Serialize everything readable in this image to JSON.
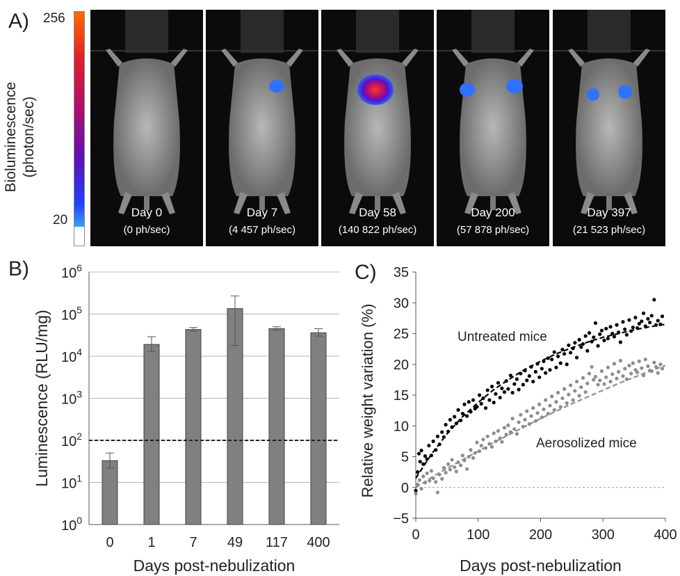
{
  "panel_a": {
    "letter": "A)",
    "scale_max": "256",
    "scale_min": "20",
    "scale_label_line1": "Bioluminescence",
    "scale_label_line2": "(photon/sec)",
    "images": [
      {
        "day": "Day 0",
        "signal": "(0 ph/sec)"
      },
      {
        "day": "Day 7",
        "signal": "(4 457 ph/sec)"
      },
      {
        "day": "Day 58",
        "signal": "(140 822 ph/sec)"
      },
      {
        "day": "Day 200",
        "signal": "(57 878 ph/sec)"
      },
      {
        "day": "Day 397",
        "signal": "(21 523 ph/sec)"
      }
    ]
  },
  "panel_b": {
    "letter": "B)"
  },
  "panel_c": {
    "letter": "C)",
    "annotation_untreated": "Untreated mice",
    "annotation_aerosolized": "Aerosolized mice"
  },
  "chart_data": [
    {
      "type": "bar",
      "xlabel": "Days post-nebulization",
      "ylabel": "Luminescence (RLU/mg)",
      "yscale": "log",
      "ylim": [
        1,
        1000000
      ],
      "yticks": [
        {
          "base": "10",
          "exp": "0"
        },
        {
          "base": "10",
          "exp": "1"
        },
        {
          "base": "10",
          "exp": "2"
        },
        {
          "base": "10",
          "exp": "3"
        },
        {
          "base": "10",
          "exp": "4"
        },
        {
          "base": "10",
          "exp": "5"
        },
        {
          "base": "10",
          "exp": "6"
        }
      ],
      "categories": [
        "0",
        "1",
        "7",
        "49",
        "117",
        "400"
      ],
      "values": [
        33,
        19000,
        43000,
        135000,
        45000,
        36000
      ],
      "error_low": [
        22,
        13000,
        39000,
        18000,
        41000,
        30000
      ],
      "error_high": [
        50,
        29000,
        48000,
        270000,
        50000,
        45000
      ],
      "threshold": 100,
      "grid": true,
      "colors": {
        "bar": "#808080",
        "bar_edge": "#404040",
        "threshold": "#222222"
      }
    },
    {
      "type": "scatter",
      "xlabel": "Days post-nebulization",
      "ylabel": "Relative weight variation (%)",
      "xlim": [
        0,
        400
      ],
      "ylim": [
        -5,
        35
      ],
      "xticks": [
        "0",
        "100",
        "200",
        "300",
        "400"
      ],
      "yticks": [
        "−5",
        "0",
        "5",
        "10",
        "15",
        "20",
        "25",
        "30",
        "35"
      ],
      "series": [
        {
          "color": "#000000",
          "x": [
            0,
            3,
            5,
            7,
            9,
            12,
            15,
            18,
            21,
            25,
            28,
            32,
            35,
            38,
            42,
            45,
            48,
            52,
            55,
            58,
            62,
            65,
            68,
            72,
            75,
            78,
            82,
            85,
            88,
            92,
            95,
            98,
            102,
            105,
            108,
            112,
            115,
            118,
            122,
            125,
            128,
            132,
            135,
            138,
            142,
            145,
            148,
            152,
            155,
            158,
            162,
            165,
            168,
            172,
            175,
            178,
            182,
            185,
            188,
            192,
            195,
            198,
            202,
            205,
            208,
            212,
            215,
            218,
            222,
            225,
            228,
            232,
            235,
            238,
            242,
            245,
            248,
            252,
            255,
            258,
            262,
            265,
            268,
            272,
            275,
            278,
            282,
            285,
            288,
            292,
            295,
            298,
            302,
            305,
            308,
            312,
            315,
            318,
            322,
            325,
            328,
            332,
            335,
            338,
            342,
            345,
            348,
            352,
            355,
            358,
            362,
            365,
            368,
            372,
            375,
            378,
            382,
            385,
            388,
            392,
            395
          ],
          "y": [
            -0.5,
            2.5,
            5.5,
            4.2,
            6.0,
            3.8,
            5.1,
            4.6,
            6.8,
            5.2,
            7.5,
            6.1,
            8.3,
            7.0,
            9.0,
            8.2,
            10.2,
            9.1,
            11.0,
            9.8,
            11.5,
            10.4,
            12.6,
            10.9,
            12.0,
            13.5,
            11.6,
            13.9,
            12.3,
            14.2,
            12.8,
            13.1,
            15.0,
            13.6,
            14.5,
            12.9,
            15.8,
            14.2,
            16.4,
            13.8,
            15.2,
            17.0,
            14.6,
            16.1,
            15.5,
            17.3,
            16.0,
            18.2,
            15.4,
            16.8,
            17.6,
            15.9,
            18.5,
            16.7,
            19.0,
            17.4,
            18.1,
            19.6,
            17.2,
            18.8,
            20.1,
            17.9,
            19.3,
            20.5,
            18.6,
            21.0,
            19.1,
            20.8,
            22.0,
            19.5,
            21.3,
            20.2,
            22.4,
            21.7,
            20.0,
            23.1,
            21.9,
            22.6,
            23.5,
            21.1,
            24.0,
            22.8,
            23.3,
            24.6,
            22.2,
            25.1,
            23.7,
            24.4,
            26.7,
            23.0,
            24.9,
            25.5,
            23.9,
            25.8,
            24.2,
            26.1,
            25.0,
            24.5,
            26.4,
            25.2,
            23.6,
            26.9,
            25.7,
            24.8,
            27.2,
            25.4,
            26.0,
            27.6,
            25.9,
            26.6,
            27.0,
            28.3,
            26.2,
            27.4,
            26.8,
            27.9,
            30.5,
            26.4,
            27.1,
            26.5,
            27.8
          ]
        },
        {
          "color": "#8c8c8c",
          "x": [
            0,
            3,
            6,
            9,
            12,
            15,
            18,
            22,
            25,
            28,
            32,
            35,
            38,
            42,
            45,
            48,
            52,
            55,
            58,
            62,
            65,
            68,
            72,
            75,
            78,
            82,
            85,
            88,
            92,
            95,
            98,
            102,
            105,
            108,
            112,
            115,
            118,
            122,
            125,
            128,
            132,
            135,
            138,
            142,
            145,
            148,
            152,
            155,
            158,
            162,
            165,
            168,
            172,
            175,
            178,
            182,
            185,
            188,
            192,
            195,
            198,
            202,
            205,
            208,
            212,
            215,
            218,
            222,
            225,
            228,
            232,
            235,
            238,
            242,
            245,
            248,
            252,
            255,
            258,
            262,
            265,
            268,
            272,
            275,
            278,
            282,
            285,
            288,
            292,
            295,
            298,
            302,
            305,
            308,
            312,
            315,
            318,
            322,
            325,
            328,
            332,
            335,
            338,
            342,
            345,
            348,
            352,
            355,
            358,
            362,
            365,
            368,
            372,
            375,
            378,
            382,
            385,
            388,
            392,
            395
          ],
          "y": [
            -1.0,
            0.5,
            1.2,
            -0.2,
            1.8,
            0.8,
            2.3,
            1.1,
            2.7,
            1.5,
            0.9,
            -0.8,
            2.1,
            1.4,
            3.2,
            2.4,
            3.8,
            2.9,
            4.5,
            3.3,
            2.6,
            4.1,
            3.6,
            5.2,
            4.4,
            3.0,
            5.0,
            6.1,
            4.8,
            5.6,
            7.3,
            5.9,
            6.8,
            7.8,
            6.4,
            8.3,
            7.1,
            6.6,
            8.8,
            7.5,
            9.2,
            8.0,
            7.4,
            9.7,
            8.6,
            10.1,
            9.0,
            11.2,
            9.5,
            8.7,
            10.6,
            11.8,
            9.9,
            11.0,
            12.4,
            10.3,
            11.6,
            12.9,
            10.8,
            12.1,
            13.5,
            11.4,
            12.7,
            14.2,
            12.0,
            13.3,
            14.8,
            12.6,
            13.9,
            15.4,
            13.1,
            14.5,
            16.0,
            13.7,
            15.1,
            16.6,
            14.2,
            15.7,
            17.2,
            14.9,
            16.3,
            17.8,
            15.5,
            16.9,
            18.5,
            19.6,
            17.5,
            18.0,
            16.7,
            17.4,
            18.9,
            16.8,
            17.9,
            19.5,
            17.2,
            18.4,
            20.1,
            17.7,
            18.8,
            20.6,
            18.1,
            19.3,
            17.6,
            19.8,
            18.5,
            20.2,
            19.1,
            18.7,
            20.5,
            19.4,
            18.2,
            20.8,
            19.7,
            19.0,
            18.9,
            20.3,
            19.6,
            18.6,
            20.0,
            19.3
          ]
        }
      ],
      "fit_lines": [
        {
          "color": "#000000",
          "x": [
            0,
            25,
            50,
            75,
            100,
            125,
            150,
            175,
            200,
            225,
            250,
            275,
            300,
            325,
            350,
            375,
            400
          ],
          "y": [
            1.5,
            5.4,
            8.7,
            11.5,
            13.8,
            15.9,
            17.6,
            19.2,
            20.5,
            21.7,
            22.7,
            23.6,
            24.4,
            25.0,
            25.6,
            26.1,
            26.5
          ]
        },
        {
          "color": "#8c8c8c",
          "x": [
            0,
            25,
            50,
            75,
            100,
            125,
            150,
            175,
            200,
            225,
            250,
            275,
            300,
            325,
            350,
            375,
            400
          ],
          "y": [
            0.0,
            1.6,
            3.1,
            4.5,
            5.9,
            7.3,
            8.6,
            9.9,
            11.2,
            12.4,
            13.6,
            14.7,
            15.8,
            16.9,
            17.9,
            18.9,
            19.8
          ]
        }
      ],
      "zero_line": 0
    }
  ]
}
